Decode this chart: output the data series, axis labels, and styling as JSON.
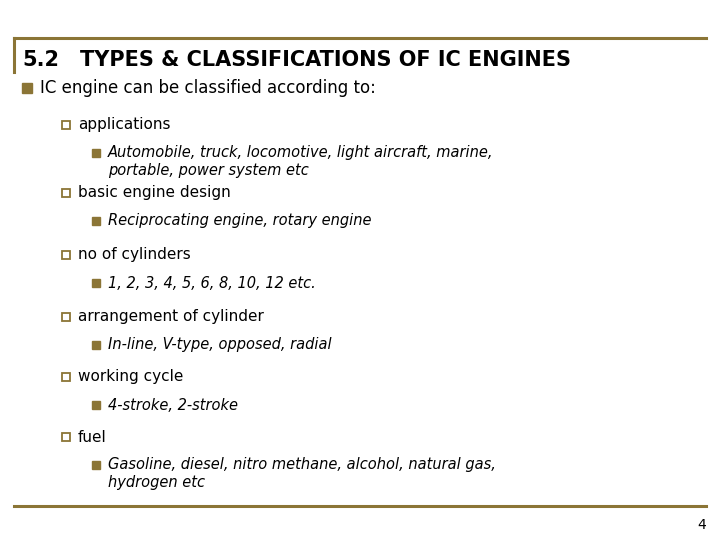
{
  "title_number": "5.2",
  "title_text": "TYPES & CLASSIFICATIONS OF IC ENGINES",
  "title_color": "#000000",
  "border_color": "#8B7536",
  "background_color": "#ffffff",
  "bullet_color": "#8B7536",
  "level1_bullet": "IC engine can be classified according to:",
  "items": [
    {
      "label": "applications",
      "detail_line1": "Automobile, truck, locomotive, light aircraft, marine,",
      "detail_line2": "portable, power system etc"
    },
    {
      "label": "basic engine design",
      "detail_line1": "Reciprocating engine, rotary engine",
      "detail_line2": ""
    },
    {
      "label": "no of cylinders",
      "detail_line1": "1, 2, 3, 4, 5, 6, 8, 10, 12 etc.",
      "detail_line2": ""
    },
    {
      "label": "arrangement of cylinder",
      "detail_line1": "In-line, V-type, opposed, radial",
      "detail_line2": ""
    },
    {
      "label": "working cycle",
      "detail_line1": "4-stroke, 2-stroke",
      "detail_line2": ""
    },
    {
      "label": "fuel",
      "detail_line1": "Gasoline, diesel, nitro methane, alcohol, natural gas,",
      "detail_line2": "hydrogen etc"
    }
  ],
  "page_number": "4",
  "title_fontsize": 15,
  "level1_fontsize": 12,
  "level2_fontsize": 11,
  "level3_fontsize": 10.5
}
